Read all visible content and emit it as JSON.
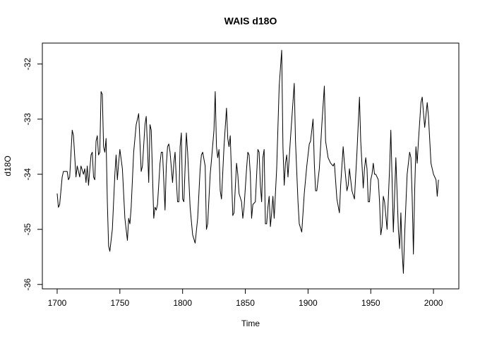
{
  "chart_data": {
    "type": "line",
    "title": "WAIS d18O",
    "x_label": "Time",
    "y_label": "d18O",
    "x": [
      1700,
      1701,
      1702,
      1704,
      1705,
      1708,
      1709,
      1710,
      1712,
      1713,
      1715,
      1716,
      1718,
      1719,
      1721,
      1722,
      1723,
      1724,
      1725,
      1727,
      1728,
      1729,
      1730,
      1731,
      1732,
      1733,
      1734,
      1735,
      1736,
      1737,
      1738,
      1739,
      1740,
      1741,
      1742,
      1744,
      1746,
      1747,
      1748,
      1749,
      1750,
      1752,
      1754,
      1756,
      1757,
      1758,
      1759,
      1761,
      1763,
      1765,
      1767,
      1768,
      1770,
      1771,
      1772,
      1773,
      1774,
      1775,
      1777,
      1778,
      1779,
      1780,
      1782,
      1783,
      1784,
      1786,
      1787,
      1788,
      1789,
      1790,
      1792,
      1793,
      1794,
      1795,
      1796,
      1797,
      1798,
      1799,
      1800,
      1801,
      1803,
      1804,
      1806,
      1808,
      1810,
      1812,
      1814,
      1815,
      1816,
      1818,
      1819,
      1820,
      1822,
      1823,
      1825,
      1826,
      1827,
      1828,
      1829,
      1830,
      1831,
      1833,
      1835,
      1836,
      1837,
      1838,
      1840,
      1841,
      1843,
      1844,
      1845,
      1847,
      1848,
      1849,
      1851,
      1852,
      1853,
      1854,
      1855,
      1856,
      1858,
      1860,
      1861,
      1862,
      1863,
      1864,
      1865,
      1866,
      1867,
      1868,
      1869,
      1870,
      1871,
      1872,
      1873,
      1875,
      1877,
      1879,
      1880,
      1881,
      1882,
      1883,
      1884,
      1886,
      1889,
      1890,
      1892,
      1893,
      1895,
      1897,
      1899,
      1901,
      1902,
      1904,
      1905,
      1906,
      1907,
      1909,
      1911,
      1913,
      1914,
      1916,
      1918,
      1920,
      1921,
      1923,
      1925,
      1926,
      1928,
      1929,
      1931,
      1932,
      1933,
      1935,
      1937,
      1939,
      1941,
      1942,
      1944,
      1945,
      1946,
      1947,
      1948,
      1949,
      1950,
      1951,
      1952,
      1953,
      1954,
      1956,
      1957,
      1958,
      1959,
      1960,
      1961,
      1963,
      1965,
      1966,
      1967,
      1968,
      1969,
      1970,
      1972,
      1973,
      1974,
      1975,
      1976,
      1977,
      1979,
      1981,
      1982,
      1983,
      1984,
      1985,
      1986,
      1987,
      1988,
      1990,
      1991,
      1993,
      1995,
      1996,
      1998,
      2000,
      2002,
      2003,
      2004
    ],
    "values": [
      -34.35,
      -34.6,
      -34.55,
      -34.05,
      -33.95,
      -33.95,
      -34.1,
      -34.05,
      -33.2,
      -33.3,
      -34.05,
      -33.85,
      -34.05,
      -33.85,
      -34.0,
      -33.9,
      -34.15,
      -33.85,
      -34.2,
      -33.65,
      -33.6,
      -34.05,
      -34.1,
      -33.4,
      -33.3,
      -33.65,
      -33.6,
      -32.5,
      -32.55,
      -33.5,
      -33.6,
      -33.35,
      -34.5,
      -35.3,
      -35.4,
      -35.0,
      -34.0,
      -33.65,
      -34.1,
      -33.8,
      -33.55,
      -33.9,
      -34.8,
      -35.2,
      -34.8,
      -34.9,
      -34.6,
      -33.6,
      -33.1,
      -32.9,
      -33.95,
      -33.85,
      -33.1,
      -32.95,
      -33.5,
      -34.15,
      -33.1,
      -33.2,
      -34.8,
      -34.6,
      -34.65,
      -34.55,
      -33.8,
      -33.6,
      -33.6,
      -34.65,
      -33.85,
      -33.5,
      -33.45,
      -33.6,
      -34.15,
      -33.8,
      -33.6,
      -34.1,
      -34.5,
      -34.5,
      -33.5,
      -33.25,
      -34.45,
      -34.5,
      -33.25,
      -33.6,
      -34.6,
      -35.1,
      -35.25,
      -34.8,
      -33.9,
      -33.65,
      -33.6,
      -33.85,
      -35.0,
      -34.9,
      -34.0,
      -33.75,
      -33.2,
      -32.5,
      -33.5,
      -33.7,
      -33.55,
      -34.3,
      -34.45,
      -33.5,
      -32.8,
      -33.35,
      -33.5,
      -33.3,
      -34.75,
      -34.7,
      -33.8,
      -34.0,
      -34.35,
      -34.5,
      -34.8,
      -34.6,
      -33.9,
      -33.6,
      -33.65,
      -34.0,
      -34.8,
      -34.55,
      -34.5,
      -33.55,
      -33.6,
      -34.2,
      -34.5,
      -33.7,
      -33.55,
      -34.9,
      -34.9,
      -34.6,
      -34.4,
      -34.95,
      -34.7,
      -34.4,
      -34.8,
      -33.9,
      -32.4,
      -31.75,
      -33.5,
      -34.2,
      -33.8,
      -33.65,
      -34.05,
      -33.35,
      -32.35,
      -33.4,
      -34.5,
      -34.9,
      -35.05,
      -34.35,
      -33.85,
      -33.45,
      -33.4,
      -33.0,
      -33.8,
      -34.3,
      -34.3,
      -33.9,
      -33.1,
      -32.4,
      -33.4,
      -33.7,
      -33.8,
      -33.85,
      -33.8,
      -34.45,
      -34.7,
      -34.2,
      -33.5,
      -33.8,
      -34.3,
      -34.2,
      -33.9,
      -34.3,
      -34.45,
      -33.6,
      -32.6,
      -33.4,
      -34.25,
      -33.9,
      -33.7,
      -33.9,
      -34.5,
      -34.5,
      -34.1,
      -34.0,
      -33.8,
      -34.0,
      -34.0,
      -34.1,
      -34.5,
      -35.1,
      -34.95,
      -34.4,
      -34.5,
      -35.0,
      -33.9,
      -33.2,
      -34.1,
      -35.05,
      -34.4,
      -33.7,
      -35.0,
      -35.35,
      -34.7,
      -35.4,
      -35.8,
      -35.1,
      -34.0,
      -33.6,
      -33.7,
      -34.4,
      -35.45,
      -34.3,
      -33.5,
      -33.8,
      -33.4,
      -32.7,
      -32.6,
      -33.15,
      -32.7,
      -32.95,
      -33.8,
      -34.0,
      -34.1,
      -34.4,
      -34.1
    ],
    "color": "#000000",
    "xlim": [
      1688.2,
      2020.2
    ],
    "xticks": [
      1700,
      1750,
      1800,
      1850,
      1900,
      1950,
      2000
    ],
    "ylim": [
      -36.08,
      -31.62
    ],
    "yticks": [
      -36,
      -35,
      -34,
      -33,
      -32
    ],
    "grid": false
  }
}
